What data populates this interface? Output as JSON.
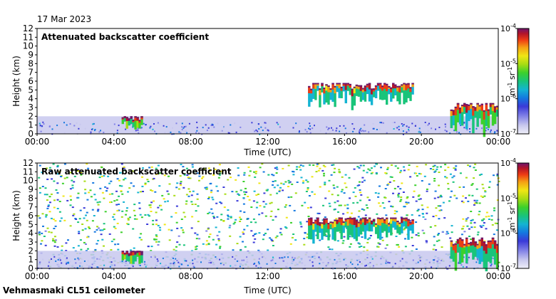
{
  "header": {
    "date": "17 Mar 2023"
  },
  "footer": {
    "instrument": "Vehmasmaki CL51 ceilometer"
  },
  "colors": {
    "background": "#ffffff",
    "colormap": [
      "#efeff8",
      "#c8c8ee",
      "#8080e6",
      "#3a3ad8",
      "#1478e0",
      "#14b4d2",
      "#19c47a",
      "#3cd02c",
      "#a8dc14",
      "#f0e614",
      "#f5a014",
      "#ee3c14",
      "#b41428",
      "#6e146e"
    ]
  },
  "chart_data": [
    {
      "type": "heatmap",
      "title": "Attenuated backscatter coefficient",
      "xlabel": "Time (UTC)",
      "ylabel": "Height (km)",
      "x_ticks": [
        "00:00",
        "04:00",
        "08:00",
        "12:00",
        "16:00",
        "20:00",
        "00:00"
      ],
      "x_range_hours": [
        0,
        24
      ],
      "y_ticks": [
        "0",
        "1",
        "2",
        "3",
        "4",
        "5",
        "6",
        "7",
        "8",
        "9",
        "10",
        "11",
        "12"
      ],
      "ylim": [
        0,
        12
      ],
      "colorbar": {
        "label_base": "m",
        "label_exp1": "-1",
        "label_mid": " sr",
        "label_exp2": "-1",
        "ticks": [
          {
            "base": "10",
            "exp": "-4"
          },
          {
            "base": "10",
            "exp": "-5"
          },
          {
            "base": "10",
            "exp": "-6"
          },
          {
            "base": "10",
            "exp": "-7"
          }
        ],
        "range_log10": [
          -7,
          -4
        ]
      },
      "features": [
        {
          "kind": "boundary_layer",
          "t_start": 0,
          "t_end": 24,
          "height_km": [
            0,
            2
          ],
          "log_value": -6.7
        },
        {
          "kind": "cloud",
          "t_start": 4.4,
          "t_end": 5.5,
          "height_km": [
            0.2,
            2.0
          ],
          "log_value": -5.0
        },
        {
          "kind": "cloud",
          "t_start": 14.1,
          "t_end": 19.6,
          "height_km": [
            3.0,
            5.8
          ],
          "log_value": -5.3
        },
        {
          "kind": "cloud",
          "t_start": 21.5,
          "t_end": 24.0,
          "height_km": [
            0.0,
            3.5
          ],
          "log_value": -5.2
        }
      ]
    },
    {
      "type": "heatmap",
      "title": "Raw attenuated backscatter coefficient",
      "xlabel": "Time (UTC)",
      "ylabel": "Height (km)",
      "x_ticks": [
        "00:00",
        "04:00",
        "08:00",
        "12:00",
        "16:00",
        "20:00",
        "00:00"
      ],
      "x_range_hours": [
        0,
        24
      ],
      "y_ticks": [
        "0",
        "1",
        "2",
        "3",
        "4",
        "5",
        "6",
        "7",
        "8",
        "9",
        "10",
        "11",
        "12"
      ],
      "ylim": [
        0,
        12
      ],
      "colorbar": {
        "label_base": "m",
        "label_exp1": "-1",
        "label_mid": " sr",
        "label_exp2": "-1",
        "ticks": [
          {
            "base": "10",
            "exp": "-4"
          },
          {
            "base": "10",
            "exp": "-5"
          },
          {
            "base": "10",
            "exp": "-6"
          },
          {
            "base": "10",
            "exp": "-7"
          }
        ],
        "range_log10": [
          -7,
          -4
        ]
      },
      "features": [
        {
          "kind": "noise_background",
          "t_start": 0,
          "t_end": 24,
          "height_km": [
            0,
            12
          ],
          "log_value": -5.8
        },
        {
          "kind": "boundary_layer",
          "t_start": 0,
          "t_end": 24,
          "height_km": [
            0,
            2
          ],
          "log_value": -6.7
        },
        {
          "kind": "cloud",
          "t_start": 4.4,
          "t_end": 5.5,
          "height_km": [
            0.2,
            2.0
          ],
          "log_value": -5.0
        },
        {
          "kind": "cloud",
          "t_start": 14.1,
          "t_end": 19.6,
          "height_km": [
            3.0,
            5.8
          ],
          "log_value": -5.3
        },
        {
          "kind": "cloud",
          "t_start": 21.5,
          "t_end": 24.0,
          "height_km": [
            0.0,
            3.5
          ],
          "log_value": -5.2
        }
      ]
    }
  ]
}
